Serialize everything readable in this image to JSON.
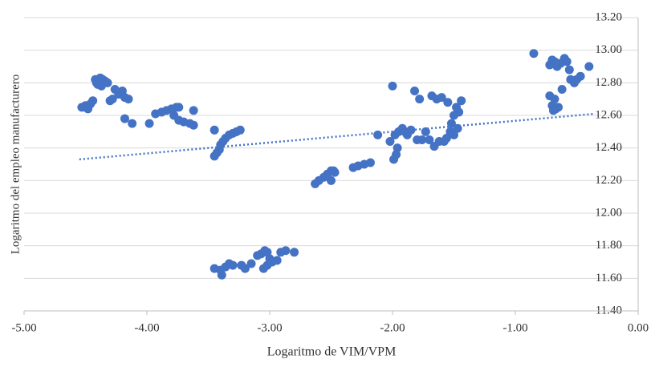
{
  "chart_data": {
    "type": "scatter",
    "y_label": "Logaritmo del empleo manufacturero",
    "x_label": "Logaritmo de VIM/VPM",
    "color": "#4472c4",
    "grid": true,
    "xlim": [
      -5,
      0
    ],
    "ylim": [
      11.4,
      13.2
    ],
    "xticks": [
      {
        "value": -5,
        "label": "-5.00"
      },
      {
        "value": -4,
        "label": "-4.00"
      },
      {
        "value": -3,
        "label": "-3.00"
      },
      {
        "value": -2,
        "label": "-2.00"
      },
      {
        "value": -1,
        "label": "-1.00"
      },
      {
        "value": 0,
        "label": "0.00"
      }
    ],
    "yticks": [
      {
        "value": 11.4,
        "label": "11.40"
      },
      {
        "value": 11.6,
        "label": "11.60"
      },
      {
        "value": 11.8,
        "label": "11.80"
      },
      {
        "value": 12,
        "label": "12.00"
      },
      {
        "value": 12.2,
        "label": "12.20"
      },
      {
        "value": 12.4,
        "label": "12.40"
      },
      {
        "value": 12.6,
        "label": "12.60"
      },
      {
        "value": 12.8,
        "label": "12.80"
      },
      {
        "value": 13,
        "label": "13.00"
      },
      {
        "value": 13.2,
        "label": "13.20"
      }
    ],
    "trendline": {
      "x": [
        -4.55,
        -0.35
      ],
      "values": [
        12.33,
        12.61
      ]
    },
    "x": [
      -4.53,
      -4.5,
      -4.48,
      -4.46,
      -4.44,
      -4.5,
      -4.42,
      -4.4,
      -4.38,
      -4.36,
      -4.34,
      -4.32,
      -4.4,
      -4.37,
      -4.41,
      -4.3,
      -4.28,
      -4.26,
      -4.23,
      -4.2,
      -4.18,
      -4.15,
      -4.18,
      -4.12,
      -3.98,
      -3.93,
      -3.88,
      -3.84,
      -3.8,
      -3.76,
      -3.74,
      -3.78,
      -3.74,
      -3.7,
      -3.65,
      -3.62,
      -3.62,
      -3.45,
      -3.45,
      -3.43,
      -3.41,
      -3.4,
      -3.38,
      -3.36,
      -3.33,
      -3.3,
      -3.27,
      -3.24,
      -3.45,
      -3.4,
      -3.39,
      -3.36,
      -3.33,
      -3.3,
      -3.23,
      -3.2,
      -3.15,
      -3.1,
      -3.07,
      -3.04,
      -3.02,
      -3.0,
      -3.02,
      -3.05,
      -2.98,
      -2.94,
      -2.91,
      -2.87,
      -2.8,
      -2.63,
      -2.6,
      -2.56,
      -2.53,
      -2.5,
      -2.48,
      -2.5,
      -2.47,
      -2.32,
      -2.28,
      -2.23,
      -2.18,
      -2.12,
      -2.0,
      -2.02,
      -1.99,
      -1.97,
      -1.96,
      -1.98,
      -1.95,
      -1.92,
      -1.9,
      -1.88,
      -1.85,
      -1.82,
      -1.78,
      -1.8,
      -1.76,
      -1.73,
      -1.7,
      -1.68,
      -1.66,
      -1.64,
      -1.62,
      -1.6,
      -1.58,
      -1.56,
      -1.55,
      -1.53,
      -1.52,
      -1.5,
      -1.5,
      -1.48,
      -1.47,
      -1.46,
      -1.44,
      -0.85,
      -0.72,
      -0.7,
      -0.68,
      -0.66,
      -0.63,
      -0.6,
      -0.58,
      -0.56,
      -0.55,
      -0.52,
      -0.5,
      -0.47,
      -0.4,
      -0.72,
      -0.7,
      -0.69,
      -0.67,
      -0.65,
      -0.68,
      -0.62
    ],
    "values": [
      12.65,
      12.66,
      12.64,
      12.67,
      12.69,
      12.65,
      12.82,
      12.82,
      12.83,
      12.82,
      12.81,
      12.8,
      12.79,
      12.78,
      12.8,
      12.69,
      12.7,
      12.76,
      12.73,
      12.75,
      12.71,
      12.7,
      12.58,
      12.55,
      12.55,
      12.61,
      12.62,
      12.63,
      12.64,
      12.65,
      12.65,
      12.6,
      12.57,
      12.56,
      12.55,
      12.54,
      12.63,
      12.51,
      12.35,
      12.37,
      12.39,
      12.42,
      12.44,
      12.46,
      12.48,
      12.49,
      12.5,
      12.51,
      11.66,
      11.65,
      11.62,
      11.67,
      11.69,
      11.68,
      11.68,
      11.66,
      11.69,
      11.74,
      11.75,
      11.77,
      11.76,
      11.72,
      11.68,
      11.66,
      11.7,
      11.71,
      11.76,
      11.77,
      11.76,
      12.18,
      12.2,
      12.22,
      12.24,
      12.26,
      12.26,
      12.2,
      12.25,
      12.28,
      12.29,
      12.3,
      12.31,
      12.48,
      12.78,
      12.44,
      12.33,
      12.36,
      12.4,
      12.48,
      12.5,
      12.52,
      12.5,
      12.48,
      12.51,
      12.75,
      12.7,
      12.45,
      12.45,
      12.5,
      12.45,
      12.72,
      12.41,
      12.7,
      12.44,
      12.71,
      12.44,
      12.46,
      12.68,
      12.5,
      12.55,
      12.6,
      12.48,
      12.65,
      12.52,
      12.62,
      12.69,
      12.98,
      12.91,
      12.94,
      12.93,
      12.9,
      12.92,
      12.95,
      12.93,
      12.88,
      12.82,
      12.8,
      12.82,
      12.84,
      12.9,
      12.72,
      12.66,
      12.63,
      12.64,
      12.65,
      12.7,
      12.76
    ]
  }
}
